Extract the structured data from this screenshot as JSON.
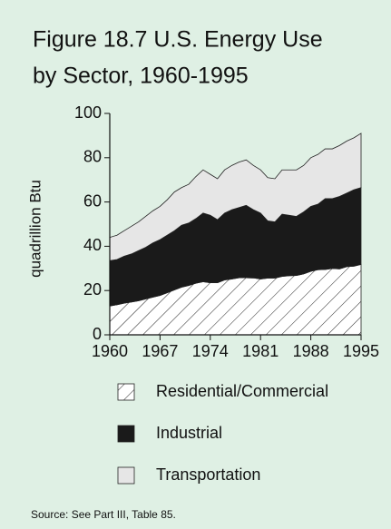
{
  "chart_data": {
    "type": "stacked_area",
    "title": "Figure 18.7  U.S. Energy Use",
    "subtitle": "by Sector, 1960-1995",
    "y_label": "quadrillion Btu",
    "source": "Source: See Part III, Table 85.",
    "x": [
      1960,
      1961,
      1962,
      1963,
      1964,
      1965,
      1966,
      1967,
      1968,
      1969,
      1970,
      1971,
      1972,
      1973,
      1974,
      1975,
      1976,
      1977,
      1978,
      1979,
      1980,
      1981,
      1982,
      1983,
      1984,
      1985,
      1986,
      1987,
      1988,
      1989,
      1990,
      1991,
      1992,
      1993,
      1994,
      1995
    ],
    "xlim": [
      1960,
      1995
    ],
    "xticks": [
      1960,
      1967,
      1974,
      1981,
      1988,
      1995
    ],
    "ylim": [
      0,
      100
    ],
    "yticks": [
      0,
      20,
      40,
      60,
      80,
      100
    ],
    "series": [
      {
        "name": "Residential/Commercial",
        "color": "#ffffff",
        "pattern": "hatch",
        "values": [
          13.0,
          13.6,
          14.3,
          14.8,
          15.4,
          16.2,
          17.0,
          17.8,
          19.0,
          20.3,
          21.5,
          22.3,
          23.3,
          24.0,
          23.5,
          23.5,
          24.8,
          25.2,
          25.8,
          25.8,
          25.7,
          25.2,
          25.6,
          25.6,
          26.4,
          26.7,
          26.8,
          27.5,
          28.7,
          29.4,
          29.5,
          30.0,
          29.8,
          30.8,
          31.0,
          31.8
        ]
      },
      {
        "name": "Industrial",
        "color": "#1a1a1a",
        "values": [
          20.5,
          20.4,
          21.2,
          21.7,
          22.6,
          23.3,
          24.5,
          25.2,
          26.0,
          26.7,
          28.0,
          28.2,
          29.2,
          31.0,
          30.5,
          28.5,
          30.2,
          31.3,
          31.7,
          32.7,
          30.8,
          29.8,
          25.9,
          25.4,
          28.1,
          27.3,
          26.7,
          28.0,
          29.3,
          29.6,
          32.0,
          31.5,
          32.7,
          33.2,
          34.5,
          34.7
        ]
      },
      {
        "name": "Transportation",
        "color": "#e6e6e6",
        "values": [
          10.5,
          11.0,
          11.5,
          12.5,
          13.0,
          14.0,
          14.5,
          15.0,
          16.0,
          17.5,
          17.0,
          17.5,
          19.0,
          19.5,
          18.5,
          18.5,
          19.5,
          20.0,
          20.5,
          20.5,
          20.0,
          19.5,
          19.5,
          19.5,
          20.0,
          20.5,
          21.0,
          21.0,
          22.0,
          22.5,
          22.5,
          22.5,
          23.0,
          23.5,
          23.5,
          24.5
        ]
      }
    ]
  }
}
